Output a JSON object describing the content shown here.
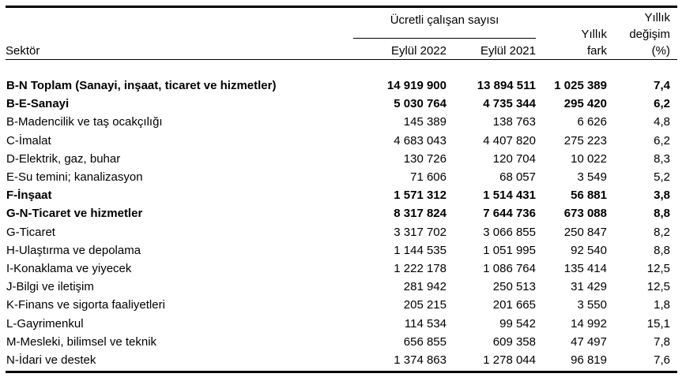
{
  "colors": {
    "background": "#ffffff",
    "text": "#000000",
    "rule": "#000000"
  },
  "table": {
    "sector_header": "Sektör",
    "group_header": "Ücretli çalışan sayısı",
    "col_2022": "Eylül 2022",
    "col_2021": "Eylül 2021",
    "col_fark": [
      "Yıllık",
      "fark"
    ],
    "col_degisim": [
      "Yıllık",
      "değişim",
      "(%)"
    ],
    "rows": [
      {
        "sector": "B-N Toplam (Sanayi, inşaat, ticaret ve hizmetler)",
        "eylul_2022": "14 919 900",
        "eylul_2021": "13 894 511",
        "yillik_fark": "1 025 389",
        "yillik_degisim": "7,4",
        "bold": true
      },
      {
        "sector": "B-E-Sanayi",
        "eylul_2022": "5 030 764",
        "eylul_2021": "4 735 344",
        "yillik_fark": "295 420",
        "yillik_degisim": "6,2",
        "bold": true
      },
      {
        "sector": "B-Madencilik ve taş ocakçılığı",
        "eylul_2022": "145 389",
        "eylul_2021": "138 763",
        "yillik_fark": "6 626",
        "yillik_degisim": "4,8",
        "bold": false
      },
      {
        "sector": "C-İmalat",
        "eylul_2022": "4 683 043",
        "eylul_2021": "4 407 820",
        "yillik_fark": "275 223",
        "yillik_degisim": "6,2",
        "bold": false
      },
      {
        "sector": "D-Elektrik, gaz, buhar",
        "eylul_2022": "130 726",
        "eylul_2021": "120 704",
        "yillik_fark": "10 022",
        "yillik_degisim": "8,3",
        "bold": false
      },
      {
        "sector": "E-Su temini; kanalizasyon",
        "eylul_2022": "71 606",
        "eylul_2021": "68 057",
        "yillik_fark": "3 549",
        "yillik_degisim": "5,2",
        "bold": false
      },
      {
        "sector": "F-İnşaat",
        "eylul_2022": "1 571 312",
        "eylul_2021": "1 514 431",
        "yillik_fark": "56 881",
        "yillik_degisim": "3,8",
        "bold": true
      },
      {
        "sector": "G-N-Ticaret ve hizmetler",
        "eylul_2022": "8 317 824",
        "eylul_2021": "7 644 736",
        "yillik_fark": "673 088",
        "yillik_degisim": "8,8",
        "bold": true
      },
      {
        "sector": "G-Ticaret",
        "eylul_2022": "3 317 702",
        "eylul_2021": "3 066 855",
        "yillik_fark": "250 847",
        "yillik_degisim": "8,2",
        "bold": false
      },
      {
        "sector": "H-Ulaştırma ve depolama",
        "eylul_2022": "1 144 535",
        "eylul_2021": "1 051 995",
        "yillik_fark": "92 540",
        "yillik_degisim": "8,8",
        "bold": false
      },
      {
        "sector": "I-Konaklama ve yiyecek",
        "eylul_2022": "1 222 178",
        "eylul_2021": "1 086 764",
        "yillik_fark": "135 414",
        "yillik_degisim": "12,5",
        "bold": false
      },
      {
        "sector": "J-Bilgi ve iletişim",
        "eylul_2022": "281 942",
        "eylul_2021": "250 513",
        "yillik_fark": "31 429",
        "yillik_degisim": "12,5",
        "bold": false
      },
      {
        "sector": "K-Finans ve sigorta faaliyetleri",
        "eylul_2022": "205 215",
        "eylul_2021": "201 665",
        "yillik_fark": "3 550",
        "yillik_degisim": "1,8",
        "bold": false
      },
      {
        "sector": "L-Gayrimenkul",
        "eylul_2022": "114 534",
        "eylul_2021": "99 542",
        "yillik_fark": "14 992",
        "yillik_degisim": "15,1",
        "bold": false
      },
      {
        "sector": "M-Mesleki, bilimsel ve teknik",
        "eylul_2022": "656 855",
        "eylul_2021": "609 358",
        "yillik_fark": "47 497",
        "yillik_degisim": "7,8",
        "bold": false
      },
      {
        "sector": "N-İdari ve destek",
        "eylul_2022": "1 374 863",
        "eylul_2021": "1 278 044",
        "yillik_fark": "96 819",
        "yillik_degisim": "7,6",
        "bold": false
      }
    ]
  }
}
